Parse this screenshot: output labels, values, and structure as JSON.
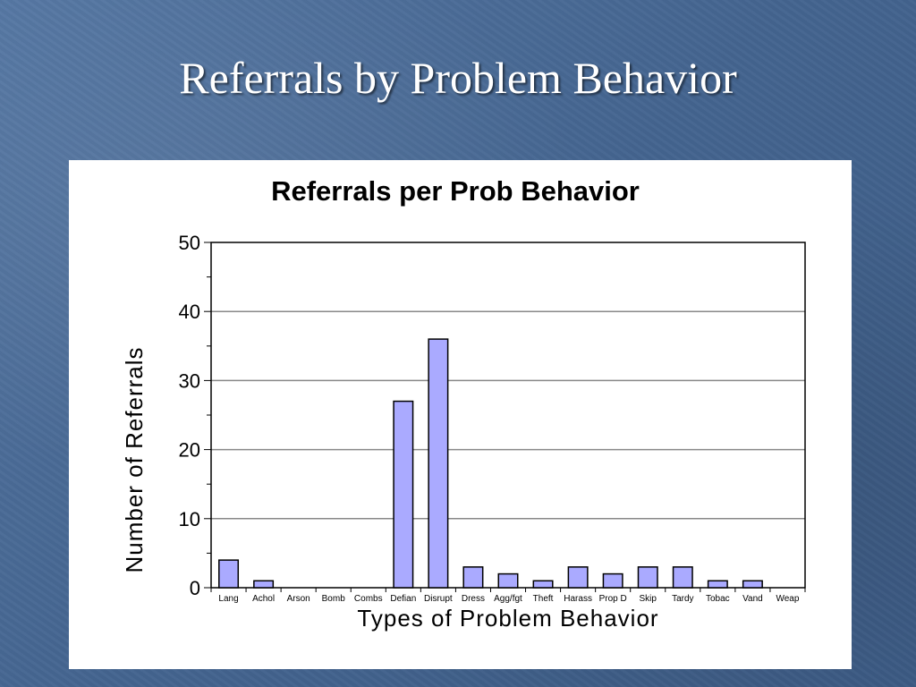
{
  "slide": {
    "title": "Referrals by Problem Behavior"
  },
  "chart_data": {
    "type": "bar",
    "title": "Referrals per Prob Behavior",
    "xlabel": "Types of Problem Behavior",
    "ylabel": "Number of Referrals",
    "ylim": [
      0,
      50
    ],
    "yticks": [
      0,
      10,
      20,
      30,
      40,
      50
    ],
    "categories": [
      "Lang",
      "Achol",
      "Arson",
      "Bomb",
      "Combs",
      "Defian",
      "Disrupt",
      "Dress",
      "Agg/fgt",
      "Theft",
      "Harass",
      "Prop D",
      "Skip",
      "Tardy",
      "Tobac",
      "Vand",
      "Weap"
    ],
    "values": [
      4,
      1,
      0,
      0,
      0,
      27,
      36,
      3,
      2,
      1,
      3,
      2,
      3,
      3,
      1,
      1,
      0
    ],
    "bar_color": "#aaaaff",
    "grid": true,
    "legend": "none"
  }
}
